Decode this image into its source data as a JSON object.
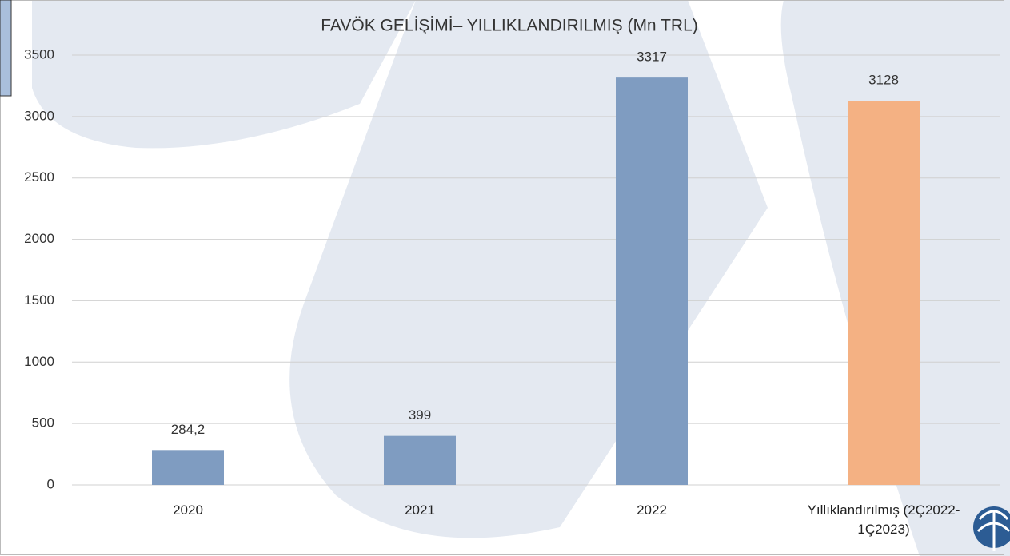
{
  "chart_data": {
    "type": "bar",
    "title": "FAVÖK GELİŞİMİ– YILLIKLANDIRILMIŞ (Mn TRL)",
    "categories": [
      "2020",
      "2021",
      "2022",
      "Yıllıklandırılmış (2Ç2022-1Ç2023)"
    ],
    "values": [
      284.2,
      399,
      3317,
      3128
    ],
    "value_labels": [
      "284,2",
      "399",
      "3317",
      "3128"
    ],
    "colors": [
      "#7f9cc1",
      "#7f9cc1",
      "#7f9cc1",
      "#f4b183"
    ],
    "ylim": [
      0,
      3500
    ],
    "yticks": [
      0,
      500,
      1000,
      1500,
      2000,
      2500,
      3000,
      3500
    ],
    "grid": true
  }
}
